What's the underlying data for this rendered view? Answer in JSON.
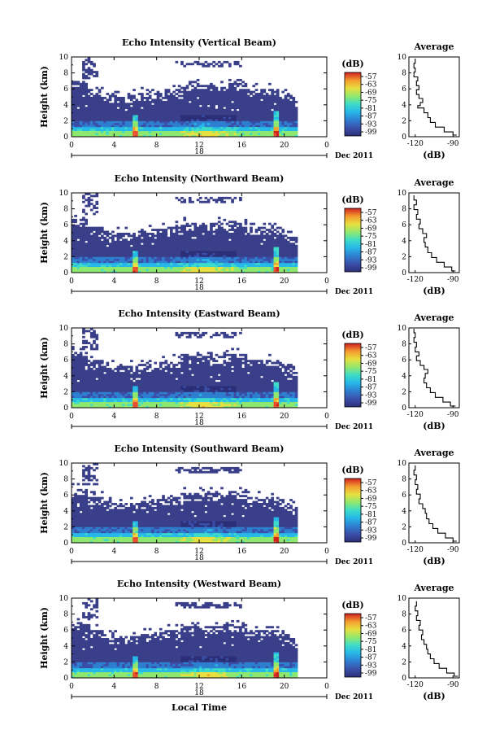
{
  "chart_data": [
    {
      "type": "heatmap",
      "title": "Echo Intensity (Vertical Beam)",
      "xlabel": "",
      "ylabel": "Height (km)",
      "xlim": [
        0,
        24
      ],
      "ylim": [
        0,
        10
      ],
      "xticks": [
        "0",
        "4",
        "8",
        "12",
        "16",
        "20",
        "0"
      ],
      "yticks": [
        "0",
        "2",
        "4",
        "6",
        "8",
        "10"
      ],
      "date_center": "18",
      "date_label": "Dec 2011",
      "colorbar": {
        "unit": "(dB)",
        "ticks": [
          "-57",
          "-63",
          "-69",
          "-75",
          "-81",
          "-87",
          "-93",
          "-99"
        ]
      },
      "average_profile": {
        "title": "Average",
        "xlabel": "(dB)",
        "xticks": [
          "-120",
          "-90"
        ],
        "xlim": [
          -125,
          -85
        ],
        "ylim": [
          0,
          10
        ],
        "yticks": [
          "0",
          "2",
          "4",
          "6",
          "8",
          "10"
        ],
        "points": [
          [
            -87,
            0.2
          ],
          [
            -90,
            0.6
          ],
          [
            -97,
            1.2
          ],
          [
            -104,
            1.8
          ],
          [
            -108,
            2.4
          ],
          [
            -110,
            3.0
          ],
          [
            -113,
            3.6
          ],
          [
            -118,
            3.9
          ],
          [
            -116,
            4.3
          ],
          [
            -114,
            4.8
          ],
          [
            -117,
            5.3
          ],
          [
            -119,
            5.9
          ],
          [
            -117,
            6.4
          ],
          [
            -119,
            7.0
          ],
          [
            -118,
            7.5
          ],
          [
            -121,
            8.1
          ],
          [
            -120,
            8.6
          ],
          [
            -121,
            9.2
          ],
          [
            -120,
            9.8
          ]
        ]
      }
    },
    {
      "type": "heatmap",
      "title": "Echo Intensity (Northward Beam)",
      "xlabel": "",
      "ylabel": "Height (km)",
      "xlim": [
        0,
        24
      ],
      "ylim": [
        0,
        10
      ],
      "xticks": [
        "0",
        "4",
        "8",
        "12",
        "16",
        "20",
        "0"
      ],
      "yticks": [
        "0",
        "2",
        "4",
        "6",
        "8",
        "10"
      ],
      "date_center": "18",
      "date_label": "Dec 2011",
      "colorbar": {
        "unit": "(dB)",
        "ticks": [
          "-57",
          "-63",
          "-69",
          "-75",
          "-81",
          "-87",
          "-93",
          "-99"
        ]
      },
      "average_profile": {
        "title": "Average",
        "xlabel": "(dB)",
        "xticks": [
          "-120",
          "-90"
        ],
        "xlim": [
          -125,
          -85
        ],
        "ylim": [
          0,
          10
        ],
        "yticks": [
          "0",
          "2",
          "4",
          "6",
          "8",
          "10"
        ],
        "points": [
          [
            -88,
            0.2
          ],
          [
            -91,
            0.7
          ],
          [
            -97,
            1.3
          ],
          [
            -103,
            1.9
          ],
          [
            -107,
            2.5
          ],
          [
            -110,
            3.2
          ],
          [
            -112,
            3.8
          ],
          [
            -113,
            4.4
          ],
          [
            -111,
            4.9
          ],
          [
            -114,
            5.5
          ],
          [
            -117,
            6.1
          ],
          [
            -116,
            6.7
          ],
          [
            -119,
            7.3
          ],
          [
            -118,
            7.9
          ],
          [
            -121,
            8.5
          ],
          [
            -119,
            9.1
          ],
          [
            -121,
            9.7
          ]
        ]
      }
    },
    {
      "type": "heatmap",
      "title": "Echo Intensity (Eastward Beam)",
      "xlabel": "",
      "ylabel": "Height (km)",
      "xlim": [
        0,
        24
      ],
      "ylim": [
        0,
        10
      ],
      "xticks": [
        "0",
        "4",
        "8",
        "12",
        "16",
        "20",
        "0"
      ],
      "yticks": [
        "0",
        "2",
        "4",
        "6",
        "8",
        "10"
      ],
      "date_center": "18",
      "date_label": "Dec 2011",
      "colorbar": {
        "unit": "(dB)",
        "ticks": [
          "-57",
          "-63",
          "-69",
          "-75",
          "-81",
          "-87",
          "-93",
          "-99"
        ]
      },
      "average_profile": {
        "title": "Average",
        "xlabel": "(dB)",
        "xticks": [
          "-120",
          "-90"
        ],
        "xlim": [
          -125,
          -85
        ],
        "ylim": [
          0,
          10
        ],
        "yticks": [
          "0",
          "2",
          "4",
          "6",
          "8",
          "10"
        ],
        "points": [
          [
            -88,
            0.2
          ],
          [
            -92,
            0.7
          ],
          [
            -98,
            1.3
          ],
          [
            -104,
            1.9
          ],
          [
            -108,
            2.5
          ],
          [
            -111,
            3.1
          ],
          [
            -113,
            3.7
          ],
          [
            -112,
            4.3
          ],
          [
            -110,
            4.8
          ],
          [
            -113,
            5.3
          ],
          [
            -116,
            5.9
          ],
          [
            -119,
            6.5
          ],
          [
            -117,
            7.0
          ],
          [
            -120,
            7.6
          ],
          [
            -119,
            8.2
          ],
          [
            -121,
            8.8
          ],
          [
            -120,
            9.4
          ],
          [
            -121,
            9.9
          ]
        ]
      }
    },
    {
      "type": "heatmap",
      "title": "Echo Intensity (Southward Beam)",
      "xlabel": "",
      "ylabel": "Height (km)",
      "xlim": [
        0,
        24
      ],
      "ylim": [
        0,
        10
      ],
      "xticks": [
        "0",
        "4",
        "8",
        "12",
        "16",
        "20",
        "0"
      ],
      "yticks": [
        "0",
        "2",
        "4",
        "6",
        "8",
        "10"
      ],
      "date_center": "18",
      "date_label": "Dec 2011",
      "colorbar": {
        "unit": "(dB)",
        "ticks": [
          "-57",
          "-63",
          "-69",
          "-75",
          "-81",
          "-87",
          "-93",
          "-99"
        ]
      },
      "average_profile": {
        "title": "Average",
        "xlabel": "(dB)",
        "xticks": [
          "-120",
          "-90"
        ],
        "xlim": [
          -125,
          -85
        ],
        "ylim": [
          0,
          10
        ],
        "yticks": [
          "0",
          "2",
          "4",
          "6",
          "8",
          "10"
        ],
        "points": [
          [
            -87,
            0.2
          ],
          [
            -90,
            0.6
          ],
          [
            -96,
            1.2
          ],
          [
            -102,
            1.8
          ],
          [
            -106,
            2.4
          ],
          [
            -109,
            3.0
          ],
          [
            -111,
            3.7
          ],
          [
            -112,
            4.3
          ],
          [
            -114,
            4.9
          ],
          [
            -117,
            5.5
          ],
          [
            -116,
            6.1
          ],
          [
            -119,
            6.7
          ],
          [
            -118,
            7.3
          ],
          [
            -120,
            7.9
          ],
          [
            -119,
            8.5
          ],
          [
            -121,
            9.1
          ],
          [
            -120,
            9.7
          ]
        ]
      }
    },
    {
      "type": "heatmap",
      "title": "Echo Intensity (Westward Beam)",
      "xlabel": "Local Time",
      "ylabel": "Height (km)",
      "xlim": [
        0,
        24
      ],
      "ylim": [
        0,
        10
      ],
      "xticks": [
        "0",
        "4",
        "8",
        "12",
        "16",
        "20",
        "0"
      ],
      "yticks": [
        "0",
        "2",
        "4",
        "6",
        "8",
        "10"
      ],
      "date_center": "18",
      "date_label": "Dec 2011",
      "colorbar": {
        "unit": "(dB)",
        "ticks": [
          "-57",
          "-63",
          "-69",
          "-75",
          "-81",
          "-87",
          "-93",
          "-99"
        ]
      },
      "average_profile": {
        "title": "Average",
        "xlabel": "(dB)",
        "xticks": [
          "-120",
          "-90"
        ],
        "xlim": [
          -125,
          -85
        ],
        "ylim": [
          0,
          10
        ],
        "yticks": [
          "0",
          "2",
          "4",
          "6",
          "8",
          "10"
        ],
        "points": [
          [
            -86,
            0.2
          ],
          [
            -89,
            0.6
          ],
          [
            -95,
            1.2
          ],
          [
            -101,
            1.8
          ],
          [
            -105,
            2.4
          ],
          [
            -108,
            3.0
          ],
          [
            -110,
            3.6
          ],
          [
            -111,
            4.2
          ],
          [
            -113,
            4.8
          ],
          [
            -115,
            5.4
          ],
          [
            -114,
            6.0
          ],
          [
            -117,
            6.6
          ],
          [
            -116,
            7.2
          ],
          [
            -119,
            7.8
          ],
          [
            -118,
            8.4
          ],
          [
            -120,
            9.0
          ],
          [
            -119,
            9.6
          ]
        ]
      }
    }
  ],
  "colors": {
    "background_echo": "#3a3f8a",
    "scale": [
      "#2c2f78",
      "#3a4ea8",
      "#2f7fd0",
      "#27b8e8",
      "#3ddcc8",
      "#8ee870",
      "#e8e040",
      "#f4a030",
      "#e85030",
      "#d02020"
    ]
  }
}
